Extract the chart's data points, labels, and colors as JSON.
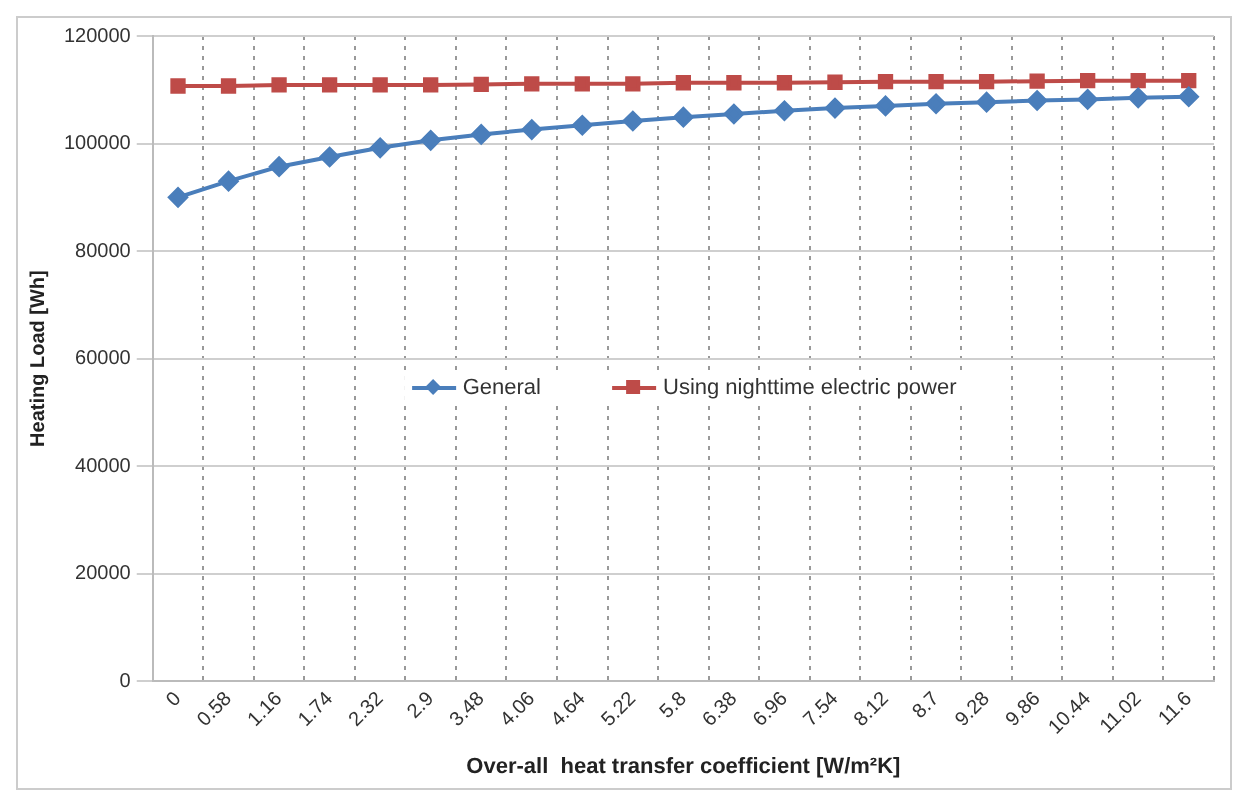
{
  "chart_data": {
    "type": "line",
    "xlabel": "Over-all  heat transfer coefficient [W/m²K]",
    "ylabel": "Heating Load [Wh]",
    "categories": [
      "0",
      "0.58",
      "1.16",
      "1.74",
      "2.32",
      "2.9",
      "3.48",
      "4.06",
      "4.64",
      "5.22",
      "5.8",
      "6.38",
      "6.96",
      "7.54",
      "8.12",
      "8.7",
      "9.28",
      "9.86",
      "10.44",
      "11.02",
      "11.6"
    ],
    "series": [
      {
        "name": "General",
        "color": "#4a7ebb",
        "marker": "diamond",
        "values": [
          90000,
          93000,
          95700,
          97500,
          99200,
          100600,
          101700,
          102600,
          103400,
          104200,
          104900,
          105500,
          106100,
          106600,
          107000,
          107400,
          107700,
          108000,
          108200,
          108500,
          108700
        ]
      },
      {
        "name": "Using nighttime electric power",
        "color": "#be4b48",
        "marker": "square",
        "values": [
          110700,
          110700,
          110900,
          110900,
          110900,
          110900,
          111000,
          111100,
          111100,
          111100,
          111300,
          111300,
          111300,
          111400,
          111500,
          111500,
          111500,
          111600,
          111700,
          111700,
          111700
        ]
      }
    ],
    "ylim": [
      0,
      120000
    ],
    "yticks": [
      0,
      20000,
      40000,
      60000,
      80000,
      100000,
      120000
    ],
    "grid": true,
    "legend": "center"
  }
}
